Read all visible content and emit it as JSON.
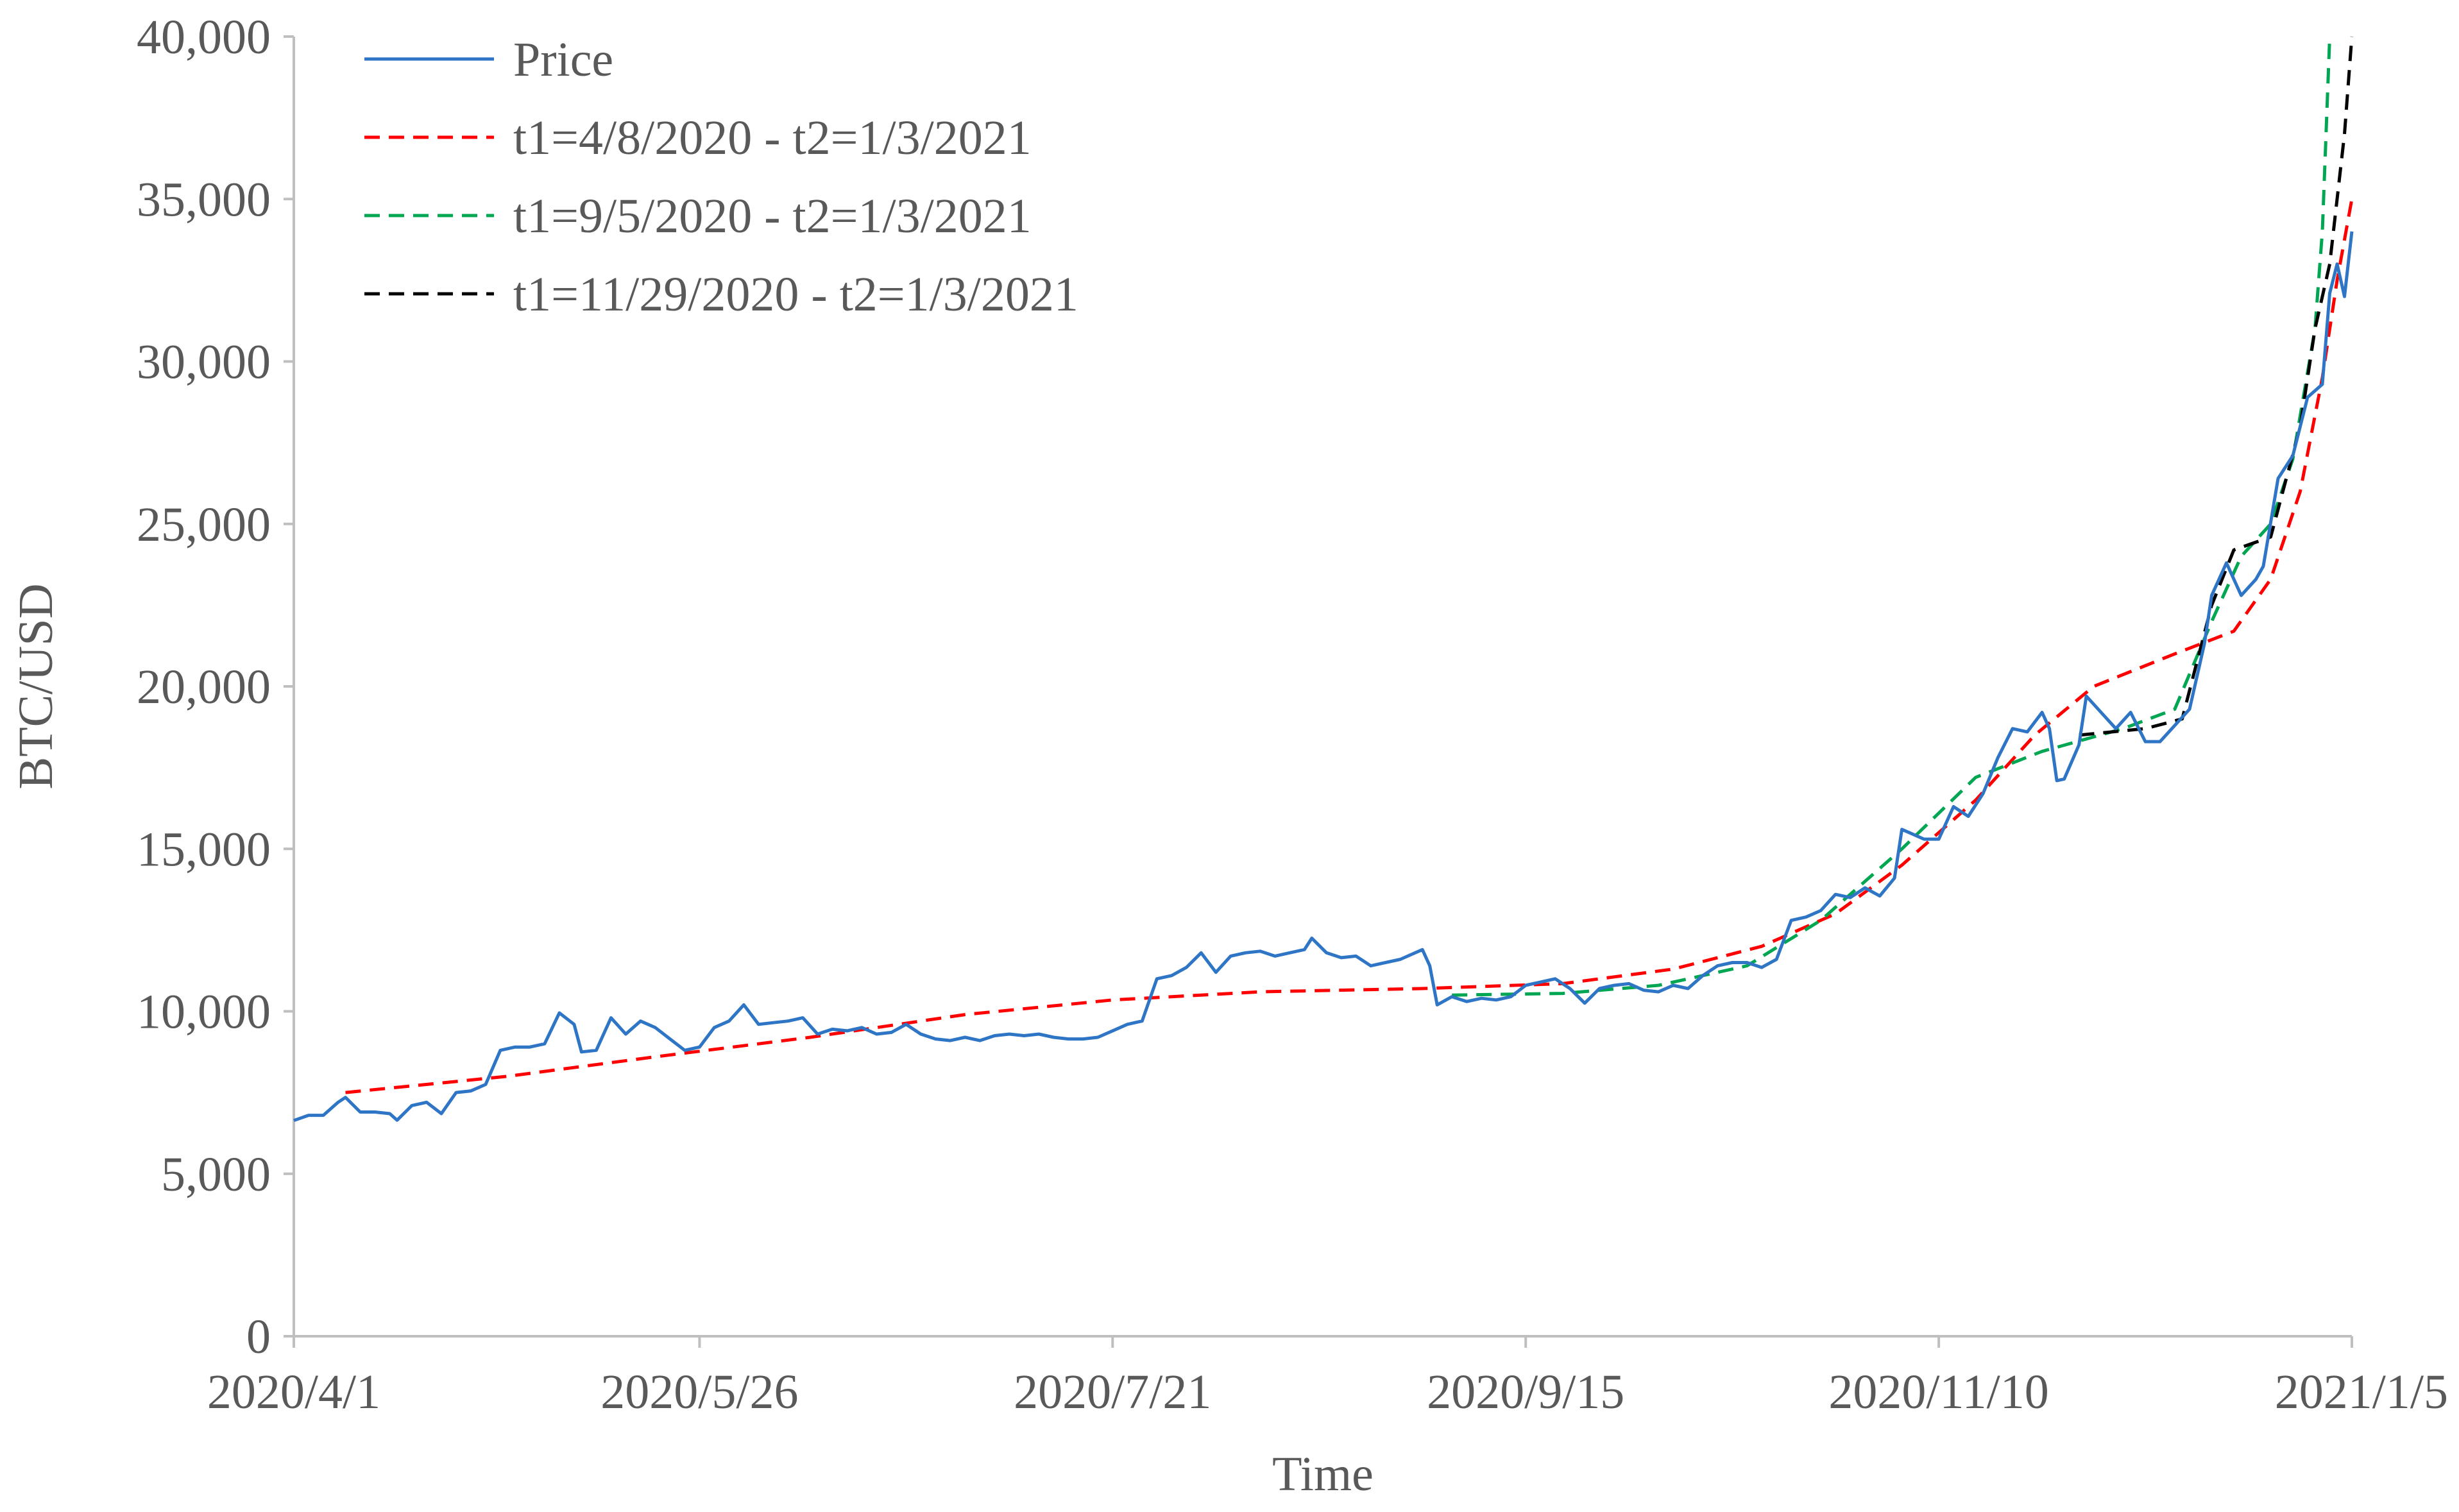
{
  "chart_data": {
    "type": "line",
    "title": "",
    "xlabel": "Time",
    "ylabel": "BTC/USD",
    "x_range": [
      "2020-04-01",
      "2021-01-05"
    ],
    "ylim": [
      0,
      40000
    ],
    "y_ticks": [
      0,
      5000,
      10000,
      15000,
      20000,
      25000,
      30000,
      35000,
      40000
    ],
    "y_tick_labels": [
      "0",
      "5,000",
      "10,000",
      "15,000",
      "20,000",
      "25,000",
      "30,000",
      "35,000",
      "40,000"
    ],
    "x_ticks": [
      "2020-04-01",
      "2020-05-26",
      "2020-07-21",
      "2020-09-15",
      "2020-11-10",
      "2021-01-05"
    ],
    "x_tick_labels": [
      "2020/4/1",
      "2020/5/26",
      "2020/7/21",
      "2020/9/15",
      "2020/11/10",
      "2021/1/5"
    ],
    "grid": false,
    "legend_position": "top-left",
    "series": [
      {
        "name": "Price",
        "color": "#2E75C6",
        "style": "solid",
        "points": [
          [
            "2020-04-01",
            6640
          ],
          [
            "2020-04-03",
            6800
          ],
          [
            "2020-04-05",
            6800
          ],
          [
            "2020-04-07",
            7200
          ],
          [
            "2020-04-08",
            7350
          ],
          [
            "2020-04-10",
            6900
          ],
          [
            "2020-04-12",
            6900
          ],
          [
            "2020-04-14",
            6850
          ],
          [
            "2020-04-15",
            6650
          ],
          [
            "2020-04-17",
            7100
          ],
          [
            "2020-04-19",
            7200
          ],
          [
            "2020-04-21",
            6850
          ],
          [
            "2020-04-23",
            7500
          ],
          [
            "2020-04-25",
            7550
          ],
          [
            "2020-04-27",
            7750
          ],
          [
            "2020-04-29",
            8800
          ],
          [
            "2020-05-01",
            8900
          ],
          [
            "2020-05-03",
            8900
          ],
          [
            "2020-05-05",
            9000
          ],
          [
            "2020-05-07",
            9950
          ],
          [
            "2020-05-09",
            9600
          ],
          [
            "2020-05-10",
            8750
          ],
          [
            "2020-05-12",
            8800
          ],
          [
            "2020-05-14",
            9800
          ],
          [
            "2020-05-16",
            9300
          ],
          [
            "2020-05-18",
            9700
          ],
          [
            "2020-05-20",
            9500
          ],
          [
            "2020-05-22",
            9150
          ],
          [
            "2020-05-24",
            8800
          ],
          [
            "2020-05-26",
            8900
          ],
          [
            "2020-05-28",
            9500
          ],
          [
            "2020-05-30",
            9700
          ],
          [
            "2020-06-01",
            10200
          ],
          [
            "2020-06-03",
            9600
          ],
          [
            "2020-06-05",
            9650
          ],
          [
            "2020-06-07",
            9700
          ],
          [
            "2020-06-09",
            9800
          ],
          [
            "2020-06-11",
            9300
          ],
          [
            "2020-06-13",
            9450
          ],
          [
            "2020-06-15",
            9400
          ],
          [
            "2020-06-17",
            9500
          ],
          [
            "2020-06-19",
            9300
          ],
          [
            "2020-06-21",
            9350
          ],
          [
            "2020-06-23",
            9600
          ],
          [
            "2020-06-25",
            9300
          ],
          [
            "2020-06-27",
            9150
          ],
          [
            "2020-06-29",
            9100
          ],
          [
            "2020-07-01",
            9200
          ],
          [
            "2020-07-03",
            9100
          ],
          [
            "2020-07-05",
            9250
          ],
          [
            "2020-07-07",
            9300
          ],
          [
            "2020-07-09",
            9250
          ],
          [
            "2020-07-11",
            9300
          ],
          [
            "2020-07-13",
            9200
          ],
          [
            "2020-07-15",
            9150
          ],
          [
            "2020-07-17",
            9150
          ],
          [
            "2020-07-19",
            9200
          ],
          [
            "2020-07-21",
            9400
          ],
          [
            "2020-07-23",
            9600
          ],
          [
            "2020-07-25",
            9700
          ],
          [
            "2020-07-27",
            11000
          ],
          [
            "2020-07-29",
            11100
          ],
          [
            "2020-07-31",
            11350
          ],
          [
            "2020-08-02",
            11800
          ],
          [
            "2020-08-04",
            11200
          ],
          [
            "2020-08-06",
            11700
          ],
          [
            "2020-08-08",
            11800
          ],
          [
            "2020-08-10",
            11850
          ],
          [
            "2020-08-12",
            11700
          ],
          [
            "2020-08-14",
            11800
          ],
          [
            "2020-08-16",
            11900
          ],
          [
            "2020-08-17",
            12250
          ],
          [
            "2020-08-19",
            11800
          ],
          [
            "2020-08-21",
            11650
          ],
          [
            "2020-08-23",
            11700
          ],
          [
            "2020-08-25",
            11400
          ],
          [
            "2020-08-27",
            11500
          ],
          [
            "2020-08-29",
            11600
          ],
          [
            "2020-09-01",
            11900
          ],
          [
            "2020-09-02",
            11400
          ],
          [
            "2020-09-03",
            10200
          ],
          [
            "2020-09-05",
            10450
          ],
          [
            "2020-09-07",
            10300
          ],
          [
            "2020-09-09",
            10400
          ],
          [
            "2020-09-11",
            10350
          ],
          [
            "2020-09-13",
            10450
          ],
          [
            "2020-09-15",
            10800
          ],
          [
            "2020-09-17",
            10900
          ],
          [
            "2020-09-19",
            11000
          ],
          [
            "2020-09-21",
            10700
          ],
          [
            "2020-09-23",
            10250
          ],
          [
            "2020-09-25",
            10700
          ],
          [
            "2020-09-27",
            10800
          ],
          [
            "2020-09-29",
            10850
          ],
          [
            "2020-10-01",
            10650
          ],
          [
            "2020-10-03",
            10600
          ],
          [
            "2020-10-05",
            10800
          ],
          [
            "2020-10-07",
            10700
          ],
          [
            "2020-10-09",
            11100
          ],
          [
            "2020-10-11",
            11400
          ],
          [
            "2020-10-13",
            11500
          ],
          [
            "2020-10-15",
            11500
          ],
          [
            "2020-10-17",
            11350
          ],
          [
            "2020-10-19",
            11600
          ],
          [
            "2020-10-21",
            12800
          ],
          [
            "2020-10-23",
            12900
          ],
          [
            "2020-10-25",
            13100
          ],
          [
            "2020-10-27",
            13600
          ],
          [
            "2020-10-29",
            13500
          ],
          [
            "2020-10-31",
            13800
          ],
          [
            "2020-11-02",
            13550
          ],
          [
            "2020-11-04",
            14100
          ],
          [
            "2020-11-05",
            15600
          ],
          [
            "2020-11-06",
            15500
          ],
          [
            "2020-11-08",
            15300
          ],
          [
            "2020-11-10",
            15300
          ],
          [
            "2020-11-12",
            16300
          ],
          [
            "2020-11-14",
            16000
          ],
          [
            "2020-11-16",
            16700
          ],
          [
            "2020-11-18",
            17800
          ],
          [
            "2020-11-20",
            18700
          ],
          [
            "2020-11-22",
            18600
          ],
          [
            "2020-11-24",
            19200
          ],
          [
            "2020-11-25",
            18700
          ],
          [
            "2020-11-26",
            17100
          ],
          [
            "2020-11-27",
            17150
          ],
          [
            "2020-11-29",
            18200
          ],
          [
            "2020-11-30",
            19700
          ],
          [
            "2020-12-02",
            19200
          ],
          [
            "2020-12-04",
            18700
          ],
          [
            "2020-12-06",
            19200
          ],
          [
            "2020-12-08",
            18300
          ],
          [
            "2020-12-10",
            18300
          ],
          [
            "2020-12-12",
            18800
          ],
          [
            "2020-12-14",
            19300
          ],
          [
            "2020-12-16",
            21300
          ],
          [
            "2020-12-17",
            22800
          ],
          [
            "2020-12-19",
            23800
          ],
          [
            "2020-12-21",
            22800
          ],
          [
            "2020-12-23",
            23300
          ],
          [
            "2020-12-24",
            23700
          ],
          [
            "2020-12-26",
            26400
          ],
          [
            "2020-12-28",
            27100
          ],
          [
            "2020-12-30",
            28900
          ],
          [
            "2021-01-01",
            29300
          ],
          [
            "2021-01-02",
            32100
          ],
          [
            "2021-01-03",
            33000
          ],
          [
            "2021-01-04",
            32000
          ],
          [
            "2021-01-05",
            34000
          ]
        ]
      },
      {
        "name": "t1=4/8/2020 - t2=1/3/2021",
        "color": "#FF0000",
        "style": "dashed",
        "points": [
          [
            "2020-04-08",
            7500
          ],
          [
            "2020-04-30",
            8000
          ],
          [
            "2020-05-20",
            8600
          ],
          [
            "2020-06-10",
            9200
          ],
          [
            "2020-07-01",
            9900
          ],
          [
            "2020-07-21",
            10350
          ],
          [
            "2020-08-10",
            10600
          ],
          [
            "2020-09-01",
            10700
          ],
          [
            "2020-09-20",
            10850
          ],
          [
            "2020-10-05",
            11300
          ],
          [
            "2020-10-17",
            12000
          ],
          [
            "2020-10-27",
            13000
          ],
          [
            "2020-11-05",
            14500
          ],
          [
            "2020-11-15",
            16500
          ],
          [
            "2020-11-23",
            18500
          ],
          [
            "2020-12-01",
            20000
          ],
          [
            "2020-12-12",
            21000
          ],
          [
            "2020-12-20",
            21700
          ],
          [
            "2020-12-25",
            23300
          ],
          [
            "2020-12-29",
            26000
          ],
          [
            "2021-01-01",
            29500
          ],
          [
            "2021-01-03",
            32500
          ],
          [
            "2021-01-05",
            35000
          ]
        ]
      },
      {
        "name": "t1=9/5/2020 - t2=1/3/2021",
        "color": "#00A651",
        "style": "dashed",
        "points": [
          [
            "2020-09-05",
            10500
          ],
          [
            "2020-09-20",
            10550
          ],
          [
            "2020-10-03",
            10800
          ],
          [
            "2020-10-15",
            11400
          ],
          [
            "2020-10-25",
            12800
          ],
          [
            "2020-11-05",
            15000
          ],
          [
            "2020-11-15",
            17200
          ],
          [
            "2020-11-24",
            18000
          ],
          [
            "2020-12-05",
            18700
          ],
          [
            "2020-12-12",
            19300
          ],
          [
            "2020-12-17",
            22000
          ],
          [
            "2020-12-21",
            24000
          ],
          [
            "2020-12-25",
            25000
          ],
          [
            "2020-12-28",
            27000
          ],
          [
            "2020-12-31",
            31000
          ],
          [
            "2021-01-01",
            34000
          ],
          [
            "2021-01-02",
            40000
          ]
        ]
      },
      {
        "name": "t1=11/29/2020 - t2=1/3/2021",
        "color": "#000000",
        "style": "dashed",
        "points": [
          [
            "2020-11-29",
            18500
          ],
          [
            "2020-12-08",
            18700
          ],
          [
            "2020-12-13",
            19000
          ],
          [
            "2020-12-17",
            22500
          ],
          [
            "2020-12-20",
            24200
          ],
          [
            "2020-12-25",
            24600
          ],
          [
            "2020-12-29",
            28000
          ],
          [
            "2020-12-31",
            31000
          ],
          [
            "2021-01-02",
            33000
          ],
          [
            "2021-01-04",
            37000
          ],
          [
            "2021-01-05",
            40000
          ]
        ]
      }
    ]
  }
}
